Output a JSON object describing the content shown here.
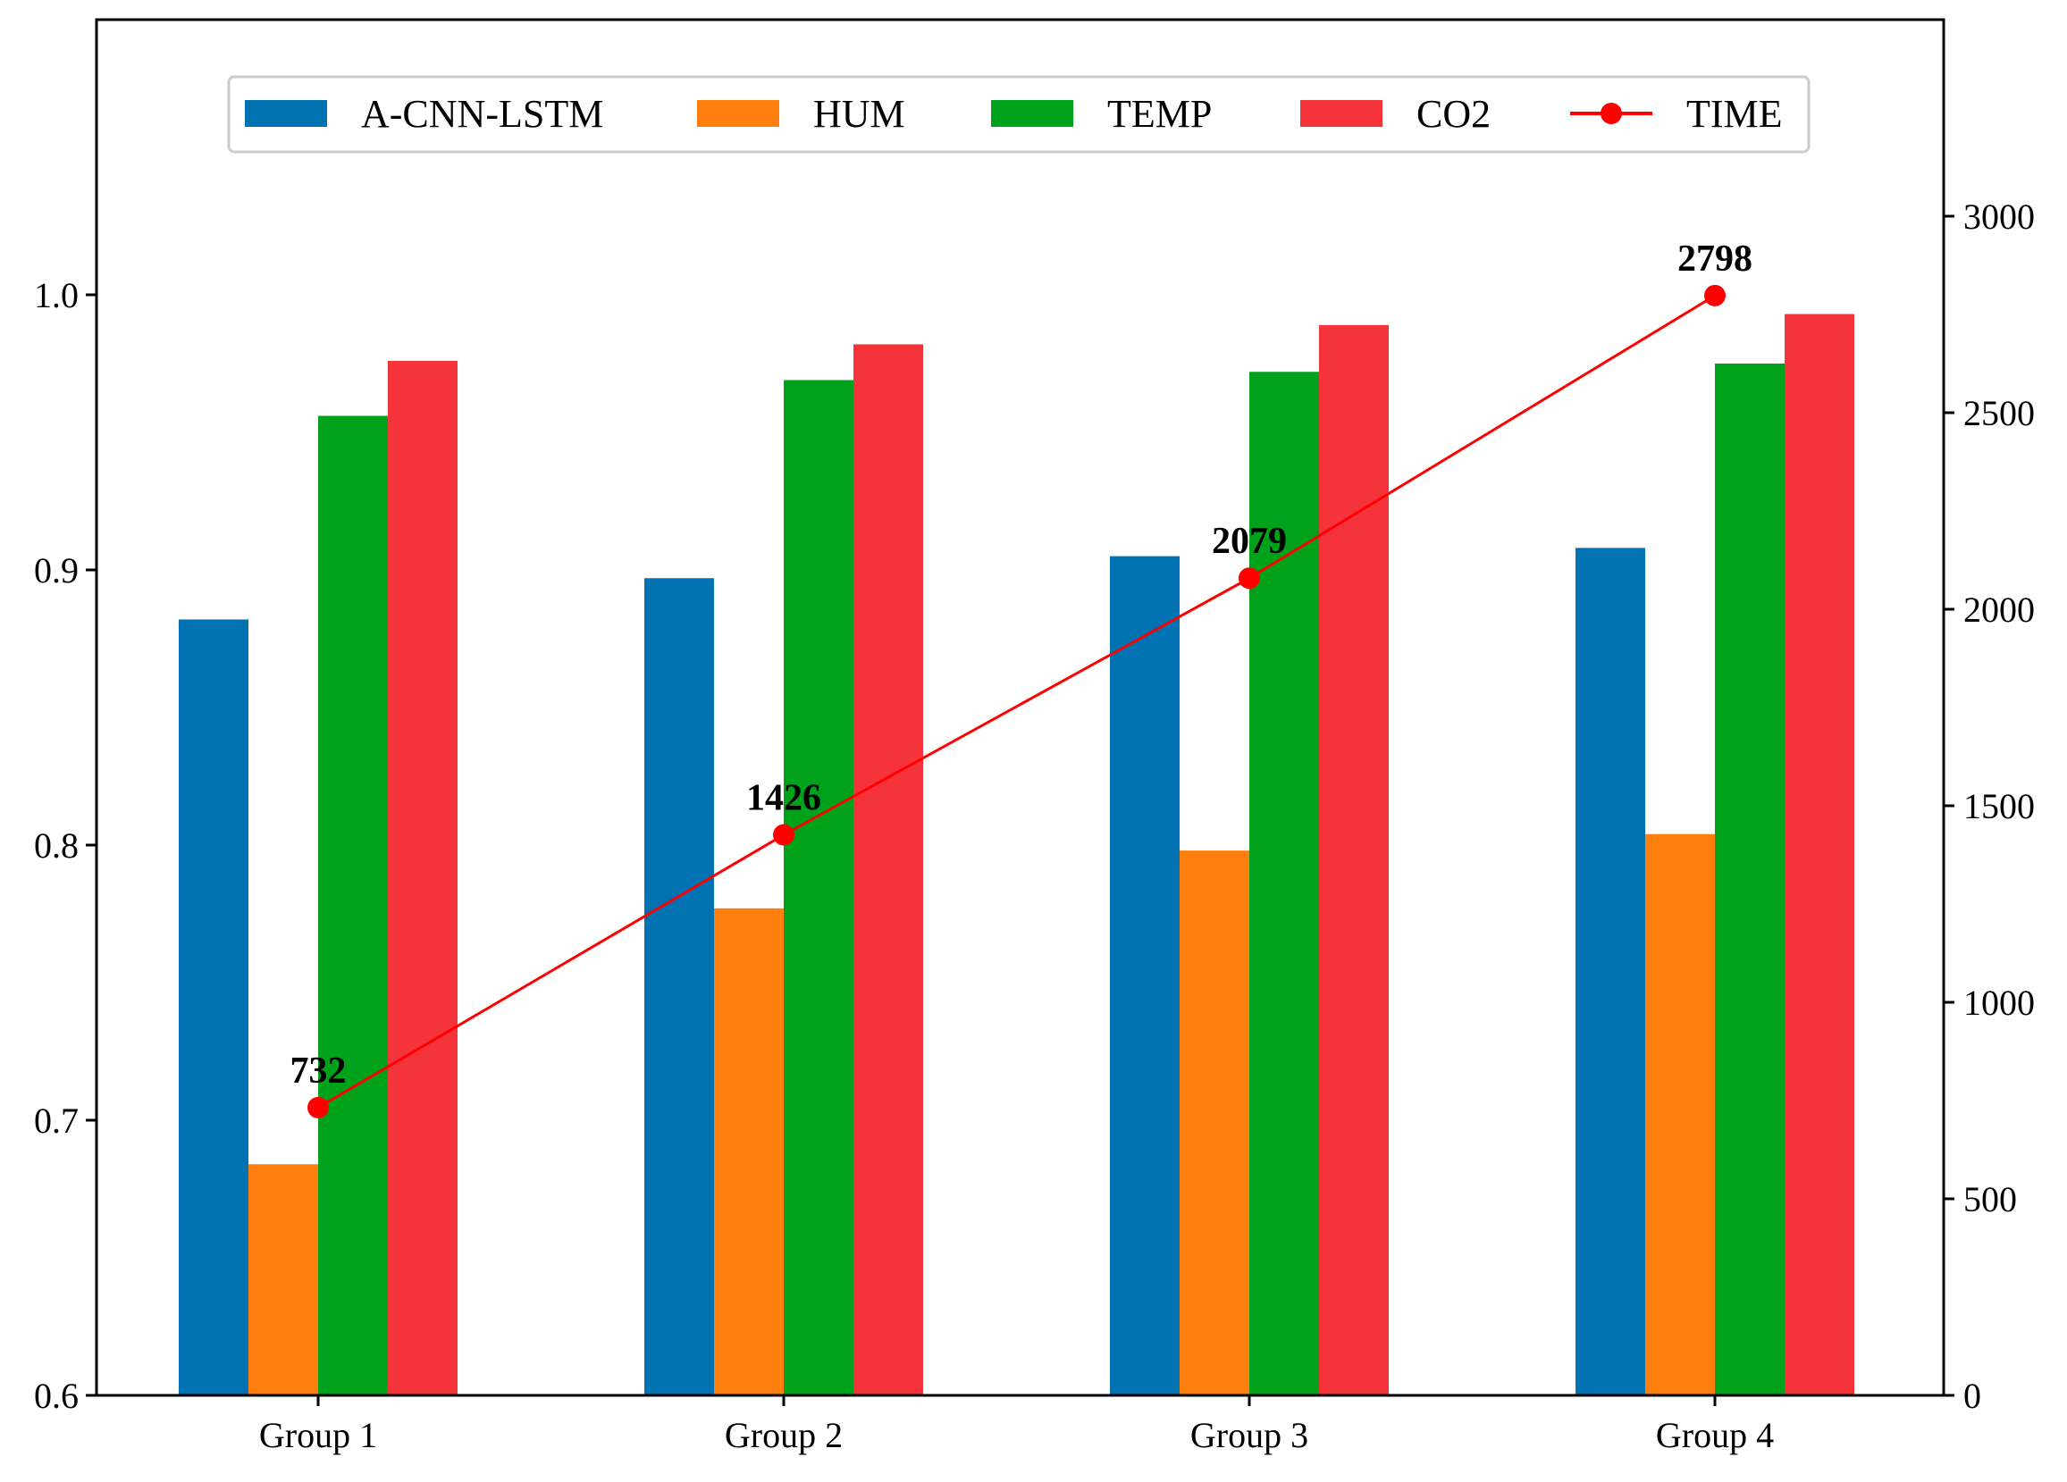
{
  "chart_data": {
    "type": "bar",
    "title": "",
    "xlabel": "",
    "ylabel": "",
    "y2label": "",
    "categories": [
      "Group 1",
      "Group 2",
      "Group 3",
      "Group 4"
    ],
    "ylim": [
      0.6,
      1.1
    ],
    "yticks": [
      0.6,
      0.7,
      0.8,
      0.9,
      1.0
    ],
    "ytick_labels": [
      "0.6",
      "0.7",
      "0.8",
      "0.9",
      "1.0"
    ],
    "y2lim": [
      0,
      3500
    ],
    "y2ticks": [
      0,
      500,
      1000,
      1500,
      2000,
      2500,
      3000
    ],
    "y2tick_labels": [
      "0",
      "500",
      "1000",
      "1500",
      "2000",
      "2500",
      "3000"
    ],
    "legend_position": "top-center",
    "grid": false,
    "series": [
      {
        "name": "A-CNN-LSTM",
        "color": "#0072b2",
        "values": [
          0.882,
          0.897,
          0.905,
          0.908
        ]
      },
      {
        "name": "HUM",
        "color": "#ff7f0e",
        "values": [
          0.684,
          0.777,
          0.798,
          0.804
        ]
      },
      {
        "name": "TEMP",
        "color": "#00a21c",
        "values": [
          0.956,
          0.969,
          0.972,
          0.975
        ]
      },
      {
        "name": "CO2",
        "color": "#f5333b",
        "values": [
          0.976,
          0.982,
          0.989,
          0.993
        ]
      }
    ],
    "line_series": {
      "name": "TIME",
      "color": "#ff0000",
      "axis": "right",
      "values": [
        732,
        1426,
        2079,
        2798
      ],
      "labels": [
        "732",
        "1426",
        "2079",
        "2798"
      ]
    }
  }
}
